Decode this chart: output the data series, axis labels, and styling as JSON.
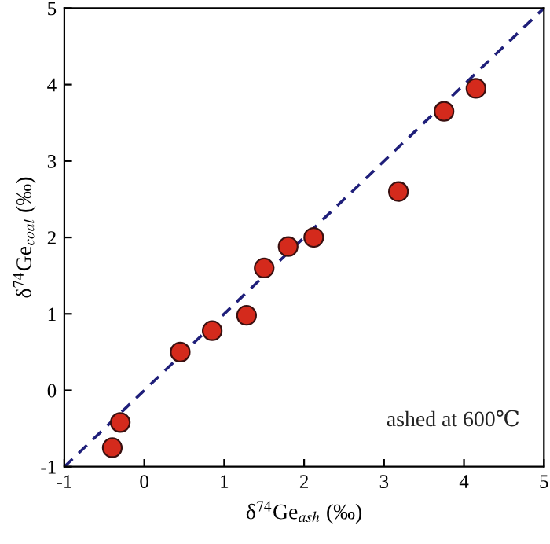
{
  "chart_data": {
    "type": "scatter",
    "xlabel": "δ$^{74}$Ge$_{ash}$ (‰)",
    "ylabel": "δ$^{74}$Ge$_{coal}$ (‰)",
    "annotations": [
      "ashed at 600℃"
    ],
    "series": [
      {
        "color": "#d42a1c",
        "marker": "circle",
        "x": [
          -0.4,
          -0.3,
          0.45,
          0.85,
          1.28,
          1.5,
          1.8,
          2.12,
          3.18,
          3.75,
          4.15
        ],
        "values": [
          -0.75,
          -0.42,
          0.5,
          0.78,
          0.98,
          1.6,
          1.88,
          2.0,
          2.6,
          3.65,
          3.95
        ]
      },
      {
        "type": "line",
        "color": "#1f1f7a",
        "line_style": "dashed",
        "marker": "none",
        "x": [
          -1,
          5
        ],
        "values": [
          -1,
          5
        ]
      }
    ],
    "xlim": [
      -1,
      5
    ],
    "ylim": [
      -1,
      5
    ],
    "xticks": [
      -1,
      0,
      1,
      2,
      3,
      4,
      5
    ],
    "yticks": [
      -1,
      0,
      1,
      2,
      3,
      4,
      5
    ],
    "grid": false,
    "legend": false
  }
}
